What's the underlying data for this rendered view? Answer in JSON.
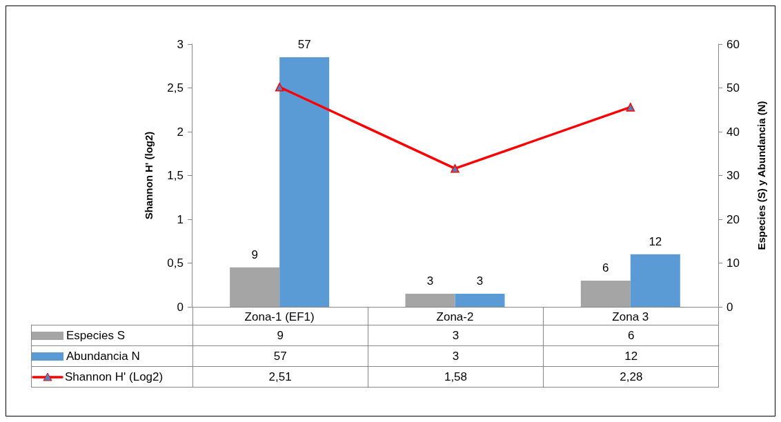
{
  "chart_data": {
    "type": "bar",
    "ylabel": "Shannon H' (log2)",
    "y2label": "Especies (S) y Abundancia (N)",
    "categories": [
      "Zona-1 (EF1)",
      "Zona-2",
      "Zona 3"
    ],
    "series": [
      {
        "name": "Especies S",
        "color": "#a5a5a5",
        "values": [
          9,
          3,
          6
        ],
        "value_labels": [
          "9",
          "3",
          "6"
        ],
        "axis": "y2"
      },
      {
        "name": "Abundancia N",
        "color": "#5b9bd5",
        "values": [
          57,
          3,
          12
        ],
        "value_labels": [
          "57",
          "3",
          "12"
        ],
        "axis": "y2"
      },
      {
        "name": "Shannon H' (Log2)",
        "type": "line",
        "color": "#ff0000",
        "values": [
          2.51,
          1.58,
          2.28
        ],
        "value_labels": [
          "2,51",
          "1,58",
          "2,28"
        ],
        "marker": "triangle",
        "line_style": "solid"
      }
    ],
    "ylim": [
      0,
      3
    ],
    "yticks": [
      0,
      {
        "value": 0.5,
        "label": "0,5"
      },
      1,
      {
        "value": 1.5,
        "label": "1,5"
      },
      2,
      {
        "value": 2.5,
        "label": "2,5"
      },
      3
    ],
    "y2lim": [
      0,
      60
    ],
    "y2ticks": [
      0,
      10,
      20,
      30,
      40,
      50,
      60
    ],
    "data_labels": true,
    "legend": "bottom"
  }
}
